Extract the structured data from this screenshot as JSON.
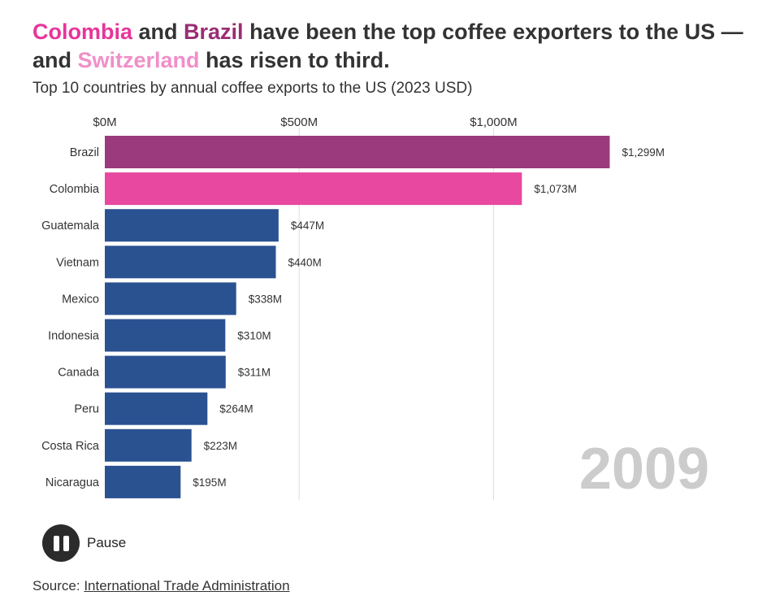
{
  "headline": {
    "colombia": "Colombia",
    "and": " and ",
    "brazil": "Brazil",
    "middle": " have been the top coffee exporters to the US — and ",
    "switzerland": "Switzerland",
    "end": " has risen to third."
  },
  "colors": {
    "brazil": "#9b3a7c",
    "colombia": "#e8489f",
    "default": "#2a5291",
    "gridline": "#dddddd",
    "year": "#cccccc"
  },
  "chart_data": {
    "type": "bar",
    "orientation": "horizontal",
    "title": "Top 10 countries by annual coffee exports to the US (2023 USD)",
    "year": "2009",
    "categories": [
      "Brazil",
      "Colombia",
      "Guatemala",
      "Vietnam",
      "Mexico",
      "Indonesia",
      "Canada",
      "Peru",
      "Costa Rica",
      "Nicaragua"
    ],
    "values": [
      1299,
      1073,
      447,
      440,
      338,
      310,
      311,
      264,
      223,
      195
    ],
    "value_labels": [
      "$1,299M",
      "$1,073M",
      "$447M",
      "$440M",
      "$338M",
      "$310M",
      "$311M",
      "$264M",
      "$223M",
      "$195M"
    ],
    "bar_colors": [
      "brazil",
      "colombia",
      "default",
      "default",
      "default",
      "default",
      "default",
      "default",
      "default",
      "default"
    ],
    "x_ticks": [
      0,
      500,
      1000
    ],
    "x_tick_labels": [
      "$0M",
      "$500M",
      "$1,000M"
    ],
    "xlim": [
      0,
      1350
    ],
    "unit": "million USD"
  },
  "controls": {
    "pause_label": "Pause"
  },
  "source": {
    "prefix": "Source: ",
    "link_text": "International Trade Administration"
  }
}
